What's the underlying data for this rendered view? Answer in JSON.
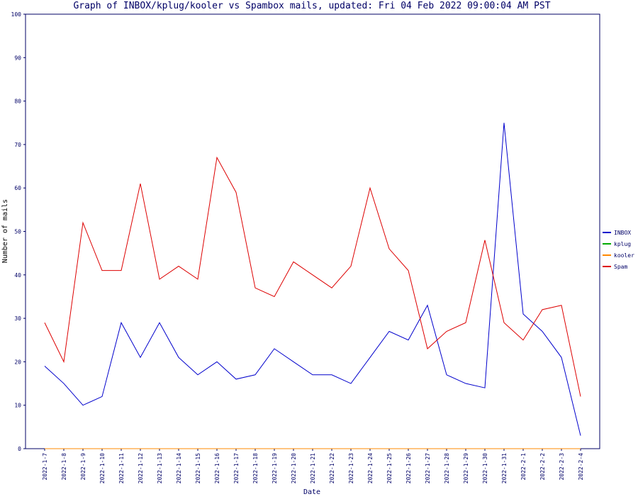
{
  "chart_data": {
    "type": "line",
    "title": "Graph of INBOX/kplug/kooler vs Spambox mails, updated: Fri 04 Feb 2022 09:00:04 AM PST",
    "xlabel": "Date",
    "ylabel": "Number of mails",
    "categories": [
      "2022-1-7",
      "2022-1-8",
      "2022-1-9",
      "2022-1-10",
      "2022-1-11",
      "2022-1-12",
      "2022-1-13",
      "2022-1-14",
      "2022-1-15",
      "2022-1-16",
      "2022-1-17",
      "2022-1-18",
      "2022-1-19",
      "2022-1-20",
      "2022-1-21",
      "2022-1-22",
      "2022-1-23",
      "2022-1-24",
      "2022-1-25",
      "2022-1-26",
      "2022-1-27",
      "2022-1-28",
      "2022-1-29",
      "2022-1-30",
      "2022-1-31",
      "2022-2-1",
      "2022-2-2",
      "2022-2-3",
      "2022-2-4"
    ],
    "series": [
      {
        "name": "INBOX",
        "color": "#0000cc",
        "values": [
          19,
          15,
          10,
          12,
          29,
          21,
          29,
          21,
          17,
          20,
          16,
          17,
          23,
          20,
          17,
          17,
          15,
          21,
          27,
          25,
          33,
          17,
          15,
          14,
          75,
          31,
          27,
          21,
          3
        ]
      },
      {
        "name": "kplug",
        "color": "#00aa00",
        "values": [
          0,
          0,
          0,
          0,
          0,
          0,
          0,
          0,
          0,
          0,
          0,
          0,
          0,
          0,
          0,
          0,
          0,
          0,
          0,
          0,
          0,
          0,
          0,
          0,
          0,
          0,
          0,
          0,
          0
        ]
      },
      {
        "name": "kooler",
        "color": "#ff8800",
        "values": [
          0,
          0,
          0,
          0,
          0,
          0,
          0,
          0,
          0,
          0,
          0,
          0,
          0,
          0,
          0,
          0,
          0,
          0,
          0,
          0,
          0,
          0,
          0,
          0,
          0,
          0,
          0,
          0,
          0
        ]
      },
      {
        "name": "Spam",
        "color": "#dd0000",
        "values": [
          29,
          20,
          52,
          41,
          41,
          61,
          39,
          42,
          39,
          67,
          59,
          37,
          35,
          43,
          40,
          37,
          42,
          60,
          46,
          41,
          23,
          27,
          29,
          48,
          29,
          25,
          32,
          33,
          12
        ]
      }
    ],
    "ylim": [
      0,
      100
    ],
    "yticks": [
      0,
      10,
      20,
      30,
      40,
      50,
      60,
      70,
      80,
      90,
      100
    ],
    "legend": "right"
  }
}
